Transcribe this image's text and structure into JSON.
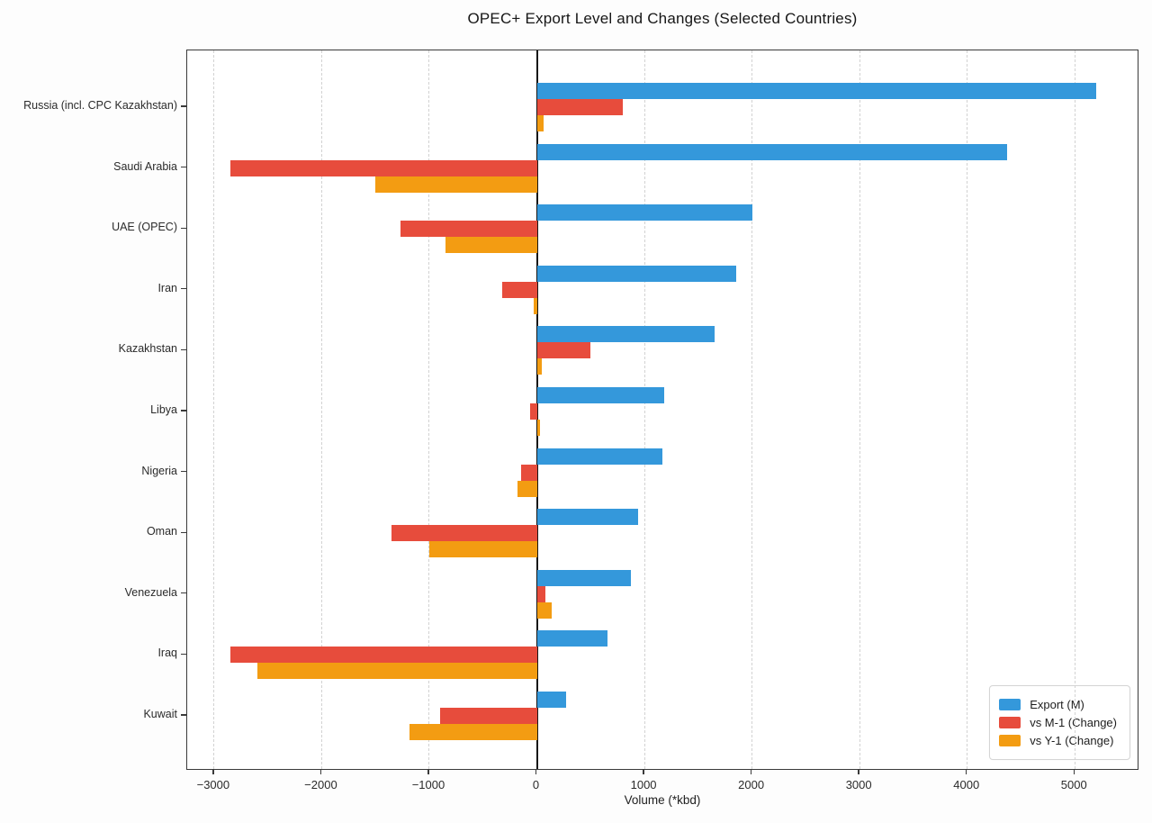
{
  "title": "OPEC+ Export Level and Changes (Selected Countries)",
  "chart_data": {
    "type": "bar",
    "orientation": "horizontal",
    "title": "OPEC+ Export Level and Changes (Selected Countries)",
    "xlabel": "Volume (*kbd)",
    "ylabel": "",
    "xlim": [
      -3250,
      5600
    ],
    "xticks": [
      -3000,
      -2000,
      -1000,
      0,
      1000,
      2000,
      3000,
      4000,
      5000
    ],
    "grid": "vertical-dashed",
    "zero_line": true,
    "legend_position": "lower right",
    "categories": [
      "Russia (incl. CPC Kazakhstan)",
      "Saudi Arabia",
      "UAE (OPEC)",
      "Iran",
      "Kazakhstan",
      "Libya",
      "Nigeria",
      "Oman",
      "Venezuela",
      "Iraq",
      "Kuwait"
    ],
    "series": [
      {
        "name": "Export (M)",
        "color": "#3498db",
        "values": [
          5200,
          4370,
          2000,
          1850,
          1650,
          1180,
          1170,
          940,
          870,
          660,
          270
        ]
      },
      {
        "name": "vs M-1 (Change)",
        "color": "#e74c3c",
        "values": [
          800,
          -2850,
          -1270,
          -320,
          500,
          -60,
          -150,
          -1350,
          80,
          -2850,
          -900
        ]
      },
      {
        "name": "vs Y-1 (Change)",
        "color": "#f39c12",
        "values": [
          60,
          -1500,
          -850,
          -30,
          50,
          30,
          -180,
          -1000,
          140,
          -2600,
          -1180
        ]
      }
    ]
  },
  "colors": {
    "grid": "#d2d2d2",
    "zero_line": "#161616",
    "spine": "#3a3a3a",
    "plot_background": "#ffffff"
  }
}
